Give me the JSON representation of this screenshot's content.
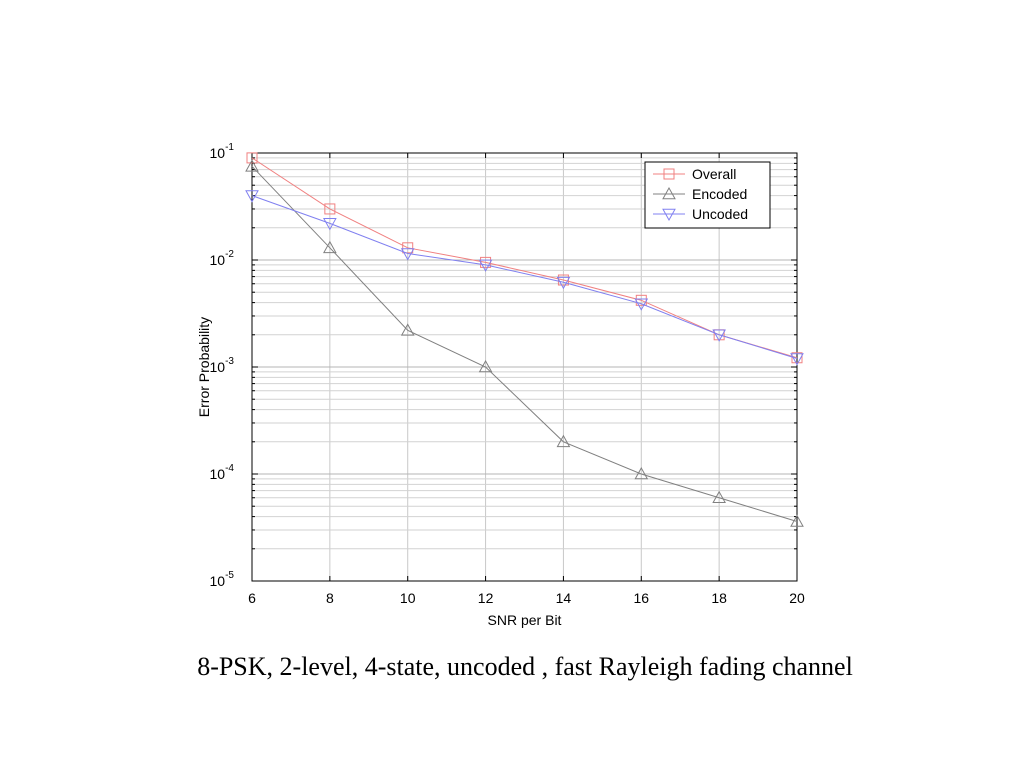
{
  "caption": "8-PSK, 2-level, 4-state, uncoded , fast Rayleigh fading channel",
  "chart_data": {
    "type": "line",
    "title": "",
    "xlabel": "SNR per Bit",
    "ylabel": "Error Probability",
    "xlim": [
      6,
      20
    ],
    "ylim": [
      1e-05,
      0.1
    ],
    "yscale": "log",
    "grid": true,
    "legend_position": "top-right",
    "x_ticks": [
      6,
      8,
      10,
      12,
      14,
      16,
      18,
      20
    ],
    "y_ticks": [
      {
        "exp": -1,
        "base": "10",
        "value": 0.1
      },
      {
        "exp": -2,
        "base": "10",
        "value": 0.01
      },
      {
        "exp": -3,
        "base": "10",
        "value": 0.001
      },
      {
        "exp": -4,
        "base": "10",
        "value": 0.0001
      },
      {
        "exp": -5,
        "base": "10",
        "value": 1e-05
      }
    ],
    "x": [
      6,
      8,
      10,
      12,
      14,
      16,
      18,
      20
    ],
    "series": [
      {
        "name": "Overall",
        "color": "#f08080",
        "marker": "square",
        "values": [
          0.09,
          0.03,
          0.013,
          0.0095,
          0.0065,
          0.0042,
          0.002,
          0.00122
        ]
      },
      {
        "name": "Encoded",
        "color": "#808080",
        "marker": "triangle-up",
        "values": [
          0.075,
          0.013,
          0.0022,
          0.001,
          0.0002,
          0.0001,
          6e-05,
          3.6e-05
        ]
      },
      {
        "name": "Uncoded",
        "color": "#8080f0",
        "marker": "triangle-down",
        "values": [
          0.04,
          0.022,
          0.0115,
          0.009,
          0.0062,
          0.0039,
          0.002,
          0.0012
        ]
      }
    ]
  }
}
